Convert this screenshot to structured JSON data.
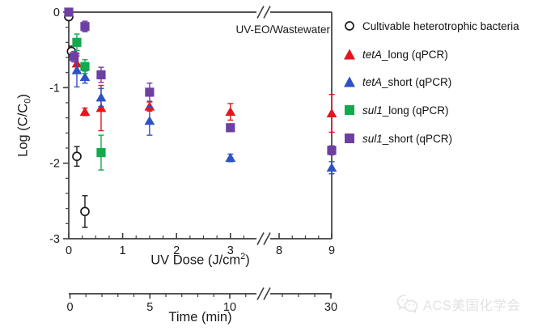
{
  "annotation": "UV-EO/Wastewater",
  "watermark": {
    "text": "ACS美国化学会",
    "icon": "wechat-icon"
  },
  "colors": {
    "red": "#e8141d",
    "blue": "#2e52c5",
    "green": "#13a94d",
    "purple": "#6e3fa3",
    "black": "#1a1a1a",
    "axis": "#3d3d3d",
    "watermark": "#e2e2e2"
  },
  "chart_data": {
    "type": "scatter",
    "annotation": "UV-EO/Wastewater",
    "legend_position": "right",
    "x_axis": {
      "title_main": "UV Dose (J/cm",
      "title_sup": "2",
      "title_end": ")",
      "range": [
        0,
        9
      ],
      "major_ticks": [
        0,
        1,
        2,
        3,
        8,
        9
      ],
      "tick_labels": [
        "0",
        "1",
        "2",
        "3",
        "8",
        "9"
      ],
      "minor_ticks": [
        0.25,
        0.5,
        0.75,
        1.25,
        1.5,
        1.75,
        2.25,
        2.5,
        2.75,
        3.25,
        8.25,
        8.5,
        8.75
      ],
      "axis_break_between": [
        3.5,
        7.75
      ]
    },
    "y_axis": {
      "title_main": "Log (C/C",
      "title_sub": "0",
      "title_end": ")",
      "range": [
        -3,
        0
      ],
      "major_ticks": [
        0,
        -1,
        -2,
        -3
      ],
      "tick_labels": [
        "0",
        "-1",
        "-2",
        "-3"
      ],
      "minor_step": 0.2
    },
    "time_axis": {
      "title": "Time (min)",
      "major_ticks": [
        0,
        5,
        10,
        30
      ],
      "tick_labels": [
        "0",
        "5",
        "10",
        "30"
      ],
      "minor_ticks": [
        1,
        2,
        3,
        4,
        6,
        7,
        8,
        9,
        11,
        27,
        28,
        29
      ],
      "axis_break_between": [
        12,
        26
      ]
    },
    "series": [
      {
        "id": "cultivable-heterotrophic-bacteria",
        "legend_italic": "",
        "legend_rest": "Cultivable heterotrophic bacteria",
        "marker": "circle-open",
        "color_key": "black",
        "points": [
          {
            "x": 0,
            "y": -0.06,
            "e": 0
          },
          {
            "x": 0.05,
            "y": -0.52,
            "e": 0.07
          },
          {
            "x": 0.15,
            "y": -1.91,
            "e": 0.13
          },
          {
            "x": 0.3,
            "y": -2.64,
            "e": 0.21
          }
        ]
      },
      {
        "id": "tetA-long-qPCR",
        "legend_italic": "tetA",
        "legend_rest": "_long (qPCR)",
        "marker": "triangle",
        "color_key": "red",
        "points": [
          {
            "x": 0.15,
            "y": -0.68,
            "e": 0.1
          },
          {
            "x": 0.3,
            "y": -1.32,
            "e": 0.05
          },
          {
            "x": 0.6,
            "y": -1.27,
            "e": 0.3
          },
          {
            "x": 1.5,
            "y": -1.25,
            "e": 0.06
          },
          {
            "x": 3,
            "y": -1.32,
            "e": 0.11
          },
          {
            "x": 9,
            "y": -1.34,
            "e": 0.25
          }
        ]
      },
      {
        "id": "tetA-short-qPCR",
        "legend_italic": "tetA",
        "legend_rest": "_short (qPCR)",
        "marker": "triangle",
        "color_key": "blue",
        "points": [
          {
            "x": 0.15,
            "y": -0.77,
            "e": 0.22
          },
          {
            "x": 0.3,
            "y": -0.86,
            "e": 0.08
          },
          {
            "x": 0.6,
            "y": -1.13,
            "e": 0.12
          },
          {
            "x": 1.5,
            "y": -1.44,
            "e": 0.19
          },
          {
            "x": 3,
            "y": -1.93,
            "e": 0.05
          },
          {
            "x": 9,
            "y": -2.06,
            "e": 0.08
          }
        ]
      },
      {
        "id": "sul1-long-qPCR",
        "legend_italic": "sul1",
        "legend_rest": "_long (qPCR)",
        "marker": "square",
        "color_key": "green",
        "points": [
          {
            "x": 0.15,
            "y": -0.4,
            "e": 0.11
          },
          {
            "x": 0.3,
            "y": -0.72,
            "e": 0.09
          },
          {
            "x": 0.6,
            "y": -1.86,
            "e": 0.23
          }
        ]
      },
      {
        "id": "sul1-short-qPCR",
        "legend_italic": "sul1",
        "legend_rest": "_short (qPCR)",
        "marker": "square",
        "color_key": "purple",
        "points": [
          {
            "x": 0,
            "y": 0,
            "e": 0
          },
          {
            "x": 0.1,
            "y": -0.59,
            "e": 0.07
          },
          {
            "x": 0.3,
            "y": -0.19,
            "e": 0.07
          },
          {
            "x": 0.6,
            "y": -0.83,
            "e": 0.1
          },
          {
            "x": 1.5,
            "y": -1.06,
            "e": 0.12
          },
          {
            "x": 3,
            "y": -1.53,
            "e": 0.05
          },
          {
            "x": 9,
            "y": -1.83,
            "e": 0.06
          }
        ]
      }
    ]
  }
}
